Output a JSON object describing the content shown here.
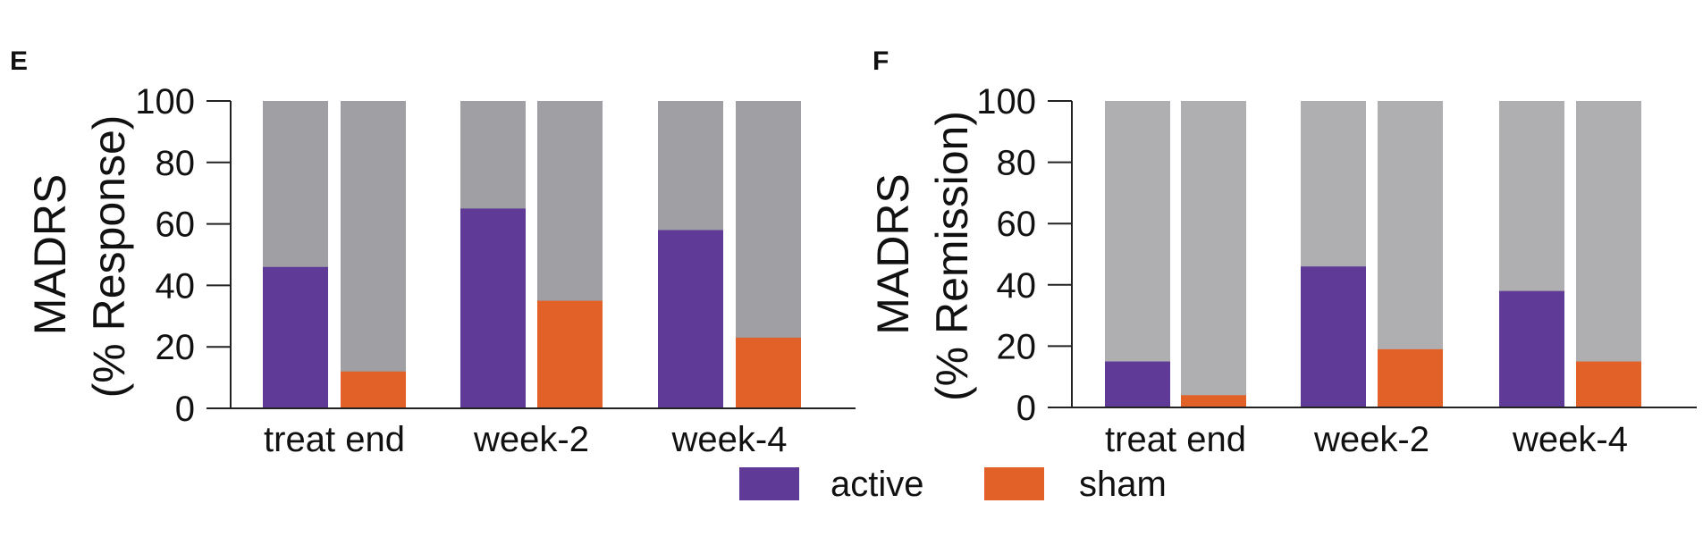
{
  "chart_data": [
    {
      "type": "bar",
      "panel_label": "E",
      "categories": [
        "treat end",
        "week-2",
        "week-4"
      ],
      "ylabel_line1": "MADRS",
      "ylabel_line2": "(% Response)",
      "ylim": [
        0,
        100
      ],
      "yticks": [
        "0",
        "20",
        "40",
        "60",
        "80",
        "100"
      ],
      "background_bar_value": 100,
      "series": [
        {
          "name": "active",
          "values": [
            46,
            65,
            58
          ]
        },
        {
          "name": "sham",
          "values": [
            12,
            35,
            23
          ]
        }
      ],
      "grid": false
    },
    {
      "type": "bar",
      "panel_label": "F",
      "categories": [
        "treat end",
        "week-2",
        "week-4"
      ],
      "ylabel_line1": "MADRS",
      "ylabel_line2": "(% Remission)",
      "ylim": [
        0,
        100
      ],
      "yticks": [
        "0",
        "20",
        "40",
        "60",
        "80",
        "100"
      ],
      "background_bar_value": 100,
      "series": [
        {
          "name": "active",
          "values": [
            15,
            46,
            38
          ]
        },
        {
          "name": "sham",
          "values": [
            4,
            19,
            15
          ]
        }
      ],
      "grid": false
    }
  ],
  "legend": {
    "placement": "bottom-center",
    "items": [
      {
        "label": "active",
        "color": "#5f3b97"
      },
      {
        "label": "sham",
        "color": "#e26128"
      }
    ]
  },
  "colors": {
    "active": "#5f3b97",
    "sham": "#e26128",
    "background_left": "#a09fa4",
    "background_right": "#afafb1",
    "axis": "#222222"
  }
}
